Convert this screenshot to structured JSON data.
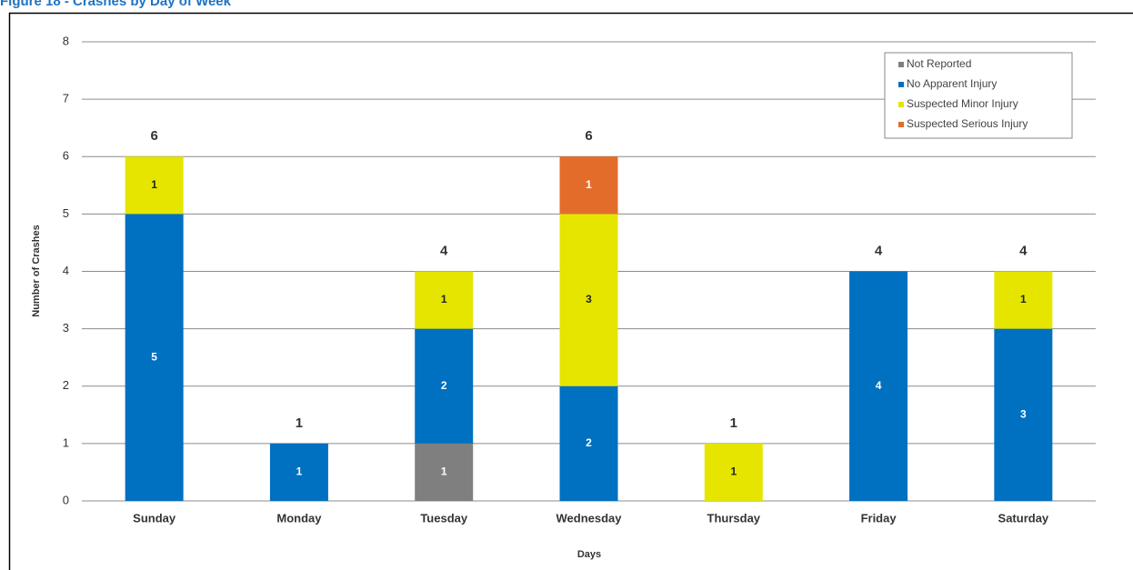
{
  "chart_data": {
    "type": "stacked_bar",
    "title": "Figure 18 - Crashes by Day of Week",
    "x_label": "Days",
    "y_label": "Number of Crashes",
    "categories": [
      "Sunday",
      "Monday",
      "Tuesday",
      "Wednesday",
      "Thursday",
      "Friday",
      "Saturday"
    ],
    "series": [
      {
        "name": "Not Reported",
        "color": "#7f7f7f",
        "values": [
          0,
          0,
          1,
          0,
          0,
          0,
          0
        ]
      },
      {
        "name": "No Apparent Injury",
        "color": "#0070c0",
        "values": [
          5,
          1,
          2,
          2,
          0,
          4,
          3
        ]
      },
      {
        "name": "Suspected Minor Injury",
        "color": "#e5e500",
        "values": [
          1,
          0,
          1,
          3,
          1,
          0,
          1
        ]
      },
      {
        "name": "Suspected Serious Injury",
        "color": "#e46c2a",
        "values": [
          0,
          0,
          0,
          1,
          0,
          0,
          0
        ]
      }
    ],
    "totals": [
      6,
      1,
      4,
      6,
      1,
      4,
      4
    ],
    "ylim": [
      0,
      8
    ],
    "yticks": [
      0,
      1,
      2,
      3,
      4,
      5,
      6,
      7,
      8
    ],
    "grid": true,
    "legend": "upper right"
  }
}
